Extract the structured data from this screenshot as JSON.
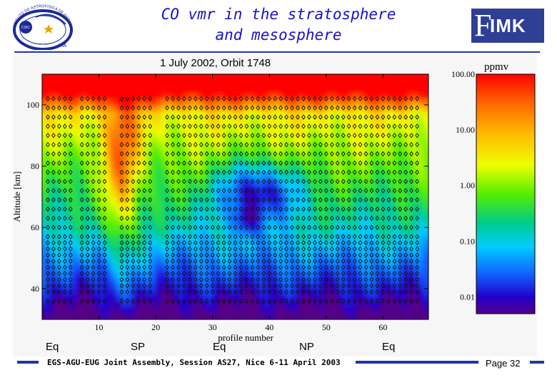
{
  "header": {
    "title_line1": "CO vmr in the stratosphere",
    "title_line2": "and mesosphere",
    "logo_left_text": "INSTITUTO DE ASTROFISICA DE ANDALUCIA",
    "logo_left_short": "IAA",
    "logo_left_badge": "CSIC",
    "logo_right_text": "IMK"
  },
  "chart_data": {
    "type": "heatmap",
    "title": "1 July 2002, Orbit 1748",
    "xlabel": "profile number",
    "ylabel": "Altitude [km]",
    "xlim": [
      0,
      68
    ],
    "ylim": [
      30,
      110
    ],
    "xticks": [
      10,
      20,
      30,
      40,
      50,
      60
    ],
    "yticks": [
      40,
      60,
      80,
      100
    ],
    "colorbar": {
      "label": "ppmv",
      "scale": "log",
      "range": [
        0.005,
        100
      ],
      "ticks": [
        "100.00",
        "10.00",
        "1.00",
        "0.10",
        "0.01"
      ],
      "tick_values": [
        100,
        10,
        1,
        0.1,
        0.01
      ]
    },
    "latitude_labels": [
      {
        "text": "Eq",
        "profile": -7
      },
      {
        "text": "SP",
        "profile": 17
      },
      {
        "text": "Eq",
        "profile": 30
      },
      {
        "text": "NP",
        "profile": 45
      },
      {
        "text": "Eq",
        "profile": 61
      }
    ],
    "retrieval_levels_km": [
      36,
      39,
      41,
      43,
      45,
      47,
      49,
      51,
      53,
      55,
      57,
      60,
      63,
      66,
      69,
      72,
      75,
      78,
      81,
      84,
      87,
      90,
      93,
      96,
      99,
      102
    ],
    "profiles_with_markers": [
      1,
      2,
      3,
      4,
      5,
      7,
      8,
      9,
      10,
      11,
      14,
      15,
      16,
      17,
      18,
      19,
      22,
      23,
      24,
      25,
      26,
      27,
      28,
      29,
      30,
      31,
      32,
      33,
      34,
      35,
      36,
      37,
      38,
      39,
      40,
      41,
      42,
      43,
      44,
      45,
      46,
      47,
      48,
      49,
      50,
      51,
      52,
      53,
      54,
      55,
      56,
      57,
      58,
      59,
      60,
      61,
      62,
      63,
      64,
      65,
      66
    ]
  },
  "footer": {
    "text": "EGS-AGU-EUG Joint Assembly, Session AS27, Nice 6-11 April 2003",
    "page_label": "Page 32"
  }
}
